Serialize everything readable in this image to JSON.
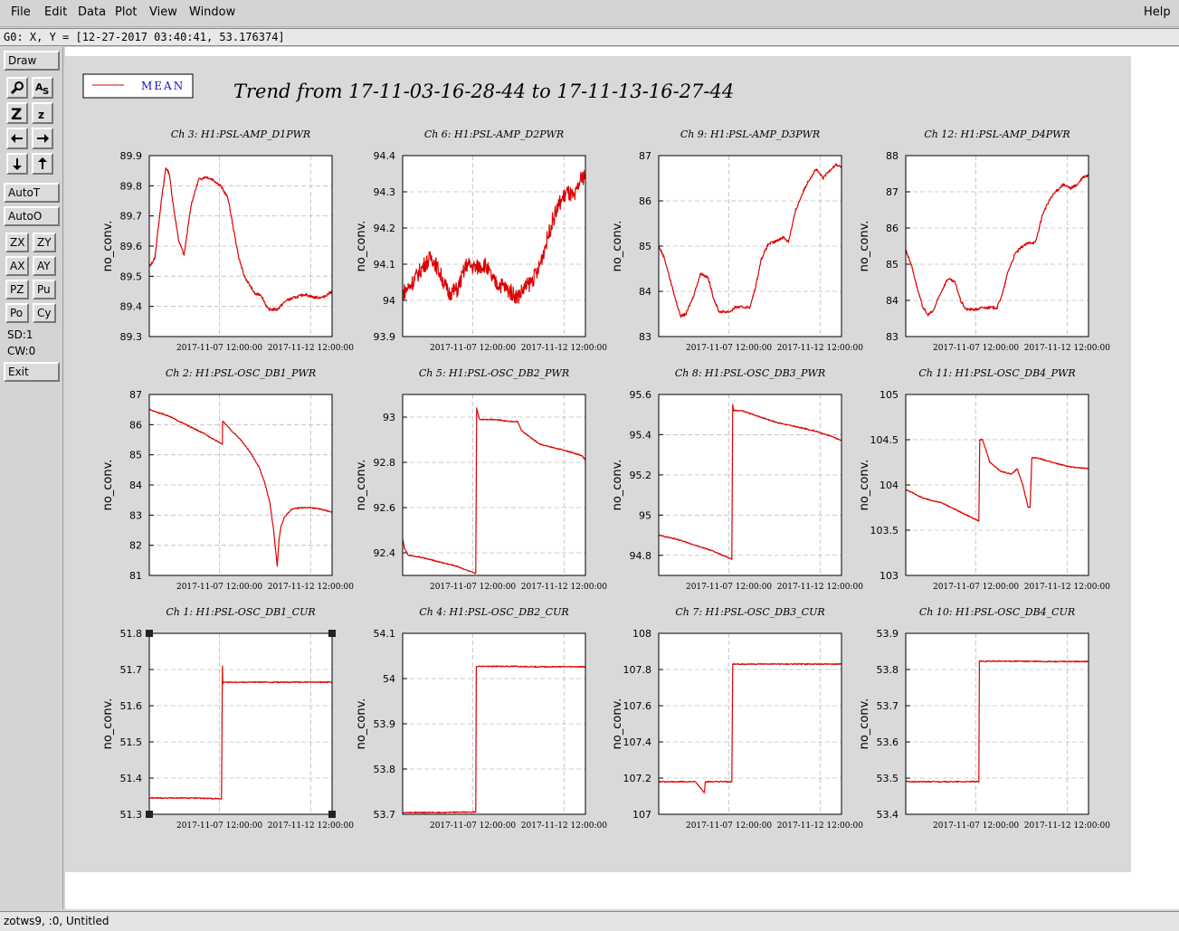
{
  "menubar": {
    "items": [
      "File",
      "Edit",
      "Data",
      "Plot",
      "View",
      "Window"
    ],
    "help": "Help"
  },
  "statusline": "G0: X, Y = [12-27-2017 03:40:41, 53.176374]",
  "toolbar": {
    "draw": "Draw",
    "autot": "AutoT",
    "autoo": "AutoO",
    "zx": "ZX",
    "zy": "ZY",
    "ax": "AX",
    "ay": "AY",
    "pz": "PZ",
    "pu": "Pu",
    "po": "Po",
    "cy": "Cy",
    "sd": "SD:1",
    "cw": "CW:0",
    "exit": "Exit",
    "icons": [
      "magnify-icon",
      "text-size-icon",
      "zoom-in-icon",
      "zoom-out-icon",
      "arrow-left-icon",
      "arrow-right-icon",
      "arrow-down-icon",
      "arrow-up-icon"
    ]
  },
  "bottom_status": "zotws9, :0, Untitled",
  "legend": {
    "label": "MEAN",
    "color": "#dd0000"
  },
  "main_title": "Trend from 17-11-03-16-28-44 to 17-11-13-16-27-44",
  "x_ticks": [
    "2017-11-07 12:00:00",
    "2017-11-12 12:00:00"
  ],
  "y_axis_label": "no_conv.",
  "colors": {
    "trace": "#dd0000",
    "grid": "#bdbdbd",
    "canvas_bg": "#d9d9d9"
  },
  "chart_data": [
    {
      "type": "line",
      "title": "Ch 3: H1:PSL-AMP_D1PWR",
      "ylabel": "no_conv.",
      "ylim": [
        89.3,
        89.9
      ],
      "yticks": [
        "89.3",
        "89.4",
        "89.5",
        "89.6",
        "89.7",
        "89.8",
        "89.9"
      ],
      "x": [
        0,
        0.3,
        0.6,
        0.9,
        1.1,
        1.3,
        1.6,
        1.9,
        2.3,
        2.7,
        3.1,
        3.5,
        3.9,
        4.3,
        4.6,
        4.9,
        5.2,
        5.5,
        5.8,
        6.1,
        6.5,
        7.0,
        7.5,
        8.0,
        8.5,
        9.0,
        9.5,
        10.0
      ],
      "y": [
        89.53,
        89.56,
        89.72,
        89.86,
        89.84,
        89.74,
        89.62,
        89.57,
        89.74,
        89.82,
        89.83,
        89.82,
        89.8,
        89.76,
        89.66,
        89.56,
        89.5,
        89.47,
        89.44,
        89.44,
        89.39,
        89.39,
        89.42,
        89.43,
        89.44,
        89.43,
        89.43,
        89.45
      ]
    },
    {
      "type": "line",
      "title": "Ch 6: H1:PSL-AMP_D2PWR",
      "ylabel": "no_conv.",
      "ylim": [
        93.9,
        94.4
      ],
      "yticks": [
        "93.9",
        "94",
        "94.1",
        "94.2",
        "94.3",
        "94.4"
      ],
      "x": [
        0,
        0.4,
        0.8,
        1.2,
        1.6,
        2.0,
        2.5,
        3.0,
        3.5,
        4.0,
        4.5,
        5.0,
        5.5,
        6.0,
        6.3,
        6.6,
        7.0,
        7.4,
        7.8,
        8.2,
        8.6,
        9.0,
        9.4,
        9.7,
        10.0
      ],
      "y": [
        94.02,
        94.04,
        94.07,
        94.1,
        94.12,
        94.08,
        94.02,
        94.03,
        94.1,
        94.09,
        94.1,
        94.05,
        94.04,
        94.02,
        94.01,
        94.03,
        94.05,
        94.08,
        94.15,
        94.22,
        94.27,
        94.3,
        94.28,
        94.33,
        94.35
      ]
    },
    {
      "type": "line",
      "title": "Ch 9: H1:PSL-AMP_D3PWR",
      "ylabel": "no_conv.",
      "ylim": [
        83,
        87
      ],
      "yticks": [
        "83",
        "84",
        "85",
        "86",
        "87"
      ],
      "x": [
        0,
        0.3,
        0.6,
        0.9,
        1.2,
        1.5,
        1.9,
        2.3,
        2.7,
        3.0,
        3.3,
        3.6,
        3.9,
        4.2,
        4.5,
        5.0,
        5.3,
        5.6,
        6.0,
        6.4,
        6.8,
        7.1,
        7.5,
        7.9,
        8.2,
        8.6,
        9.0,
        9.4,
        9.7,
        10.0
      ],
      "y": [
        85.0,
        84.75,
        84.3,
        83.85,
        83.45,
        83.5,
        83.9,
        84.4,
        84.3,
        83.85,
        83.55,
        83.55,
        83.55,
        83.65,
        83.65,
        83.65,
        84.1,
        84.7,
        85.05,
        85.1,
        85.2,
        85.1,
        85.8,
        86.2,
        86.45,
        86.7,
        86.5,
        86.7,
        86.8,
        86.75
      ]
    },
    {
      "type": "line",
      "title": "Ch 12: H1:PSL-AMP_D4PWR",
      "ylabel": "no_conv.",
      "ylim": [
        83,
        88
      ],
      "yticks": [
        "83",
        "84",
        "85",
        "86",
        "87",
        "88"
      ],
      "x": [
        0,
        0.3,
        0.6,
        0.9,
        1.2,
        1.5,
        1.9,
        2.3,
        2.7,
        3.0,
        3.3,
        3.6,
        3.9,
        4.2,
        4.5,
        5.0,
        5.3,
        5.6,
        6.0,
        6.4,
        6.8,
        7.1,
        7.5,
        7.9,
        8.2,
        8.6,
        9.0,
        9.4,
        9.7,
        10.0
      ],
      "y": [
        85.4,
        85.0,
        84.4,
        83.85,
        83.6,
        83.7,
        84.2,
        84.6,
        84.5,
        84.0,
        83.75,
        83.75,
        83.75,
        83.8,
        83.8,
        83.8,
        84.2,
        84.8,
        85.3,
        85.5,
        85.6,
        85.6,
        86.4,
        86.8,
        87.0,
        87.2,
        87.1,
        87.2,
        87.4,
        87.45
      ]
    },
    {
      "type": "line",
      "title": "Ch 2: H1:PSL-OSC_DB1_PWR",
      "ylabel": "no_conv.",
      "ylim": [
        81,
        87
      ],
      "yticks": [
        "81",
        "82",
        "83",
        "84",
        "85",
        "86",
        "87"
      ],
      "x": [
        0,
        1,
        2,
        3,
        4.0,
        4.01,
        4.05,
        4.5,
        5.0,
        5.5,
        6.0,
        6.3,
        6.6,
        6.8,
        7.0,
        7.1,
        7.2,
        7.4,
        7.8,
        8.3,
        8.8,
        9.4,
        10.0
      ],
      "y": [
        86.5,
        86.3,
        86.0,
        85.7,
        85.35,
        86.1,
        86.1,
        85.8,
        85.5,
        85.1,
        84.6,
        84.1,
        83.4,
        82.5,
        81.3,
        82.2,
        82.6,
        82.95,
        83.2,
        83.25,
        83.25,
        83.2,
        83.1
      ]
    },
    {
      "type": "line",
      "title": "Ch 5: H1:PSL-OSC_DB2_PWR",
      "ylabel": "no_conv.",
      "ylim": [
        92.3,
        93.1
      ],
      "yticks": [
        "92.4",
        "92.6",
        "92.8",
        "93"
      ],
      "x": [
        0,
        0.1,
        0.3,
        1.0,
        2.0,
        3.0,
        3.9,
        4.0,
        4.05,
        4.2,
        5.0,
        6.0,
        6.3,
        6.5,
        7.0,
        7.5,
        8.0,
        9.0,
        9.8,
        10.0
      ],
      "y": [
        92.46,
        92.42,
        92.39,
        92.38,
        92.36,
        92.34,
        92.31,
        92.31,
        93.04,
        92.99,
        92.99,
        92.98,
        92.98,
        92.94,
        92.91,
        92.88,
        92.87,
        92.85,
        92.83,
        92.81
      ]
    },
    {
      "type": "line",
      "title": "Ch 8: H1:PSL-OSC_DB3_PWR",
      "ylabel": "no_conv.",
      "ylim": [
        94.7,
        95.6
      ],
      "yticks": [
        "94.8",
        "95",
        "95.2",
        "95.4",
        "95.6"
      ],
      "x": [
        0,
        1,
        2,
        3,
        4.0,
        4.05,
        4.1,
        4.5,
        5.5,
        6.5,
        7.5,
        8.5,
        9.5,
        10.0
      ],
      "y": [
        94.9,
        94.88,
        94.85,
        94.82,
        94.78,
        95.55,
        95.52,
        95.52,
        95.49,
        95.46,
        95.44,
        95.42,
        95.39,
        95.37
      ]
    },
    {
      "type": "line",
      "title": "Ch 11: H1:PSL-OSC_DB4_PWR",
      "ylabel": "no_conv.",
      "ylim": [
        103,
        105
      ],
      "yticks": [
        "103",
        "103.5",
        "104",
        "104.5",
        "105"
      ],
      "x": [
        0,
        1,
        2,
        3,
        4.0,
        4.05,
        4.2,
        4.6,
        5.2,
        5.8,
        6.1,
        6.4,
        6.7,
        6.8,
        6.9,
        7.2,
        8.0,
        9.0,
        10.0
      ],
      "y": [
        103.95,
        103.85,
        103.8,
        103.7,
        103.6,
        104.5,
        104.5,
        104.25,
        104.15,
        104.12,
        104.18,
        104.0,
        103.75,
        103.75,
        104.3,
        104.3,
        104.25,
        104.2,
        104.18
      ]
    },
    {
      "type": "line",
      "title": "Ch 1: H1:PSL-OSC_DB1_CUR",
      "ylabel": "no_conv.",
      "ylim": [
        51.3,
        51.8
      ],
      "yticks": [
        "51.3",
        "51.4",
        "51.5",
        "51.6",
        "51.7",
        "51.8"
      ],
      "x": [
        0,
        2,
        3.95,
        4.0,
        4.02,
        4.05,
        6,
        8,
        10
      ],
      "y": [
        51.345,
        51.345,
        51.343,
        51.71,
        51.66,
        51.665,
        51.665,
        51.665,
        51.665
      ]
    },
    {
      "type": "line",
      "title": "Ch 4: H1:PSL-OSC_DB2_CUR",
      "ylabel": "no_conv.",
      "ylim": [
        53.7,
        54.1
      ],
      "yticks": [
        "53.7",
        "53.8",
        "53.9",
        "54",
        "54.1"
      ],
      "x": [
        0,
        2,
        4.0,
        4.03,
        6,
        8,
        10
      ],
      "y": [
        53.704,
        53.704,
        53.705,
        54.027,
        54.027,
        54.026,
        54.026
      ]
    },
    {
      "type": "line",
      "title": "Ch 7: H1:PSL-OSC_DB3_CUR",
      "ylabel": "no_conv.",
      "ylim": [
        107,
        108
      ],
      "yticks": [
        "107",
        "107.2",
        "107.4",
        "107.6",
        "107.8",
        "108"
      ],
      "x": [
        0,
        1,
        2,
        2.5,
        2.55,
        2.6,
        3.5,
        4.0,
        4.05,
        6,
        8,
        10
      ],
      "y": [
        107.18,
        107.18,
        107.18,
        107.12,
        107.18,
        107.18,
        107.18,
        107.18,
        107.83,
        107.83,
        107.83,
        107.83
      ]
    },
    {
      "type": "line",
      "title": "Ch 10: H1:PSL-OSC_DB4_CUR",
      "ylabel": "no_conv.",
      "ylim": [
        53.4,
        53.9
      ],
      "yticks": [
        "53.4",
        "53.5",
        "53.6",
        "53.7",
        "53.8",
        "53.9"
      ],
      "x": [
        0,
        2,
        4.0,
        4.03,
        6,
        8,
        10
      ],
      "y": [
        53.49,
        53.49,
        53.49,
        53.823,
        53.823,
        53.822,
        53.822
      ]
    }
  ]
}
